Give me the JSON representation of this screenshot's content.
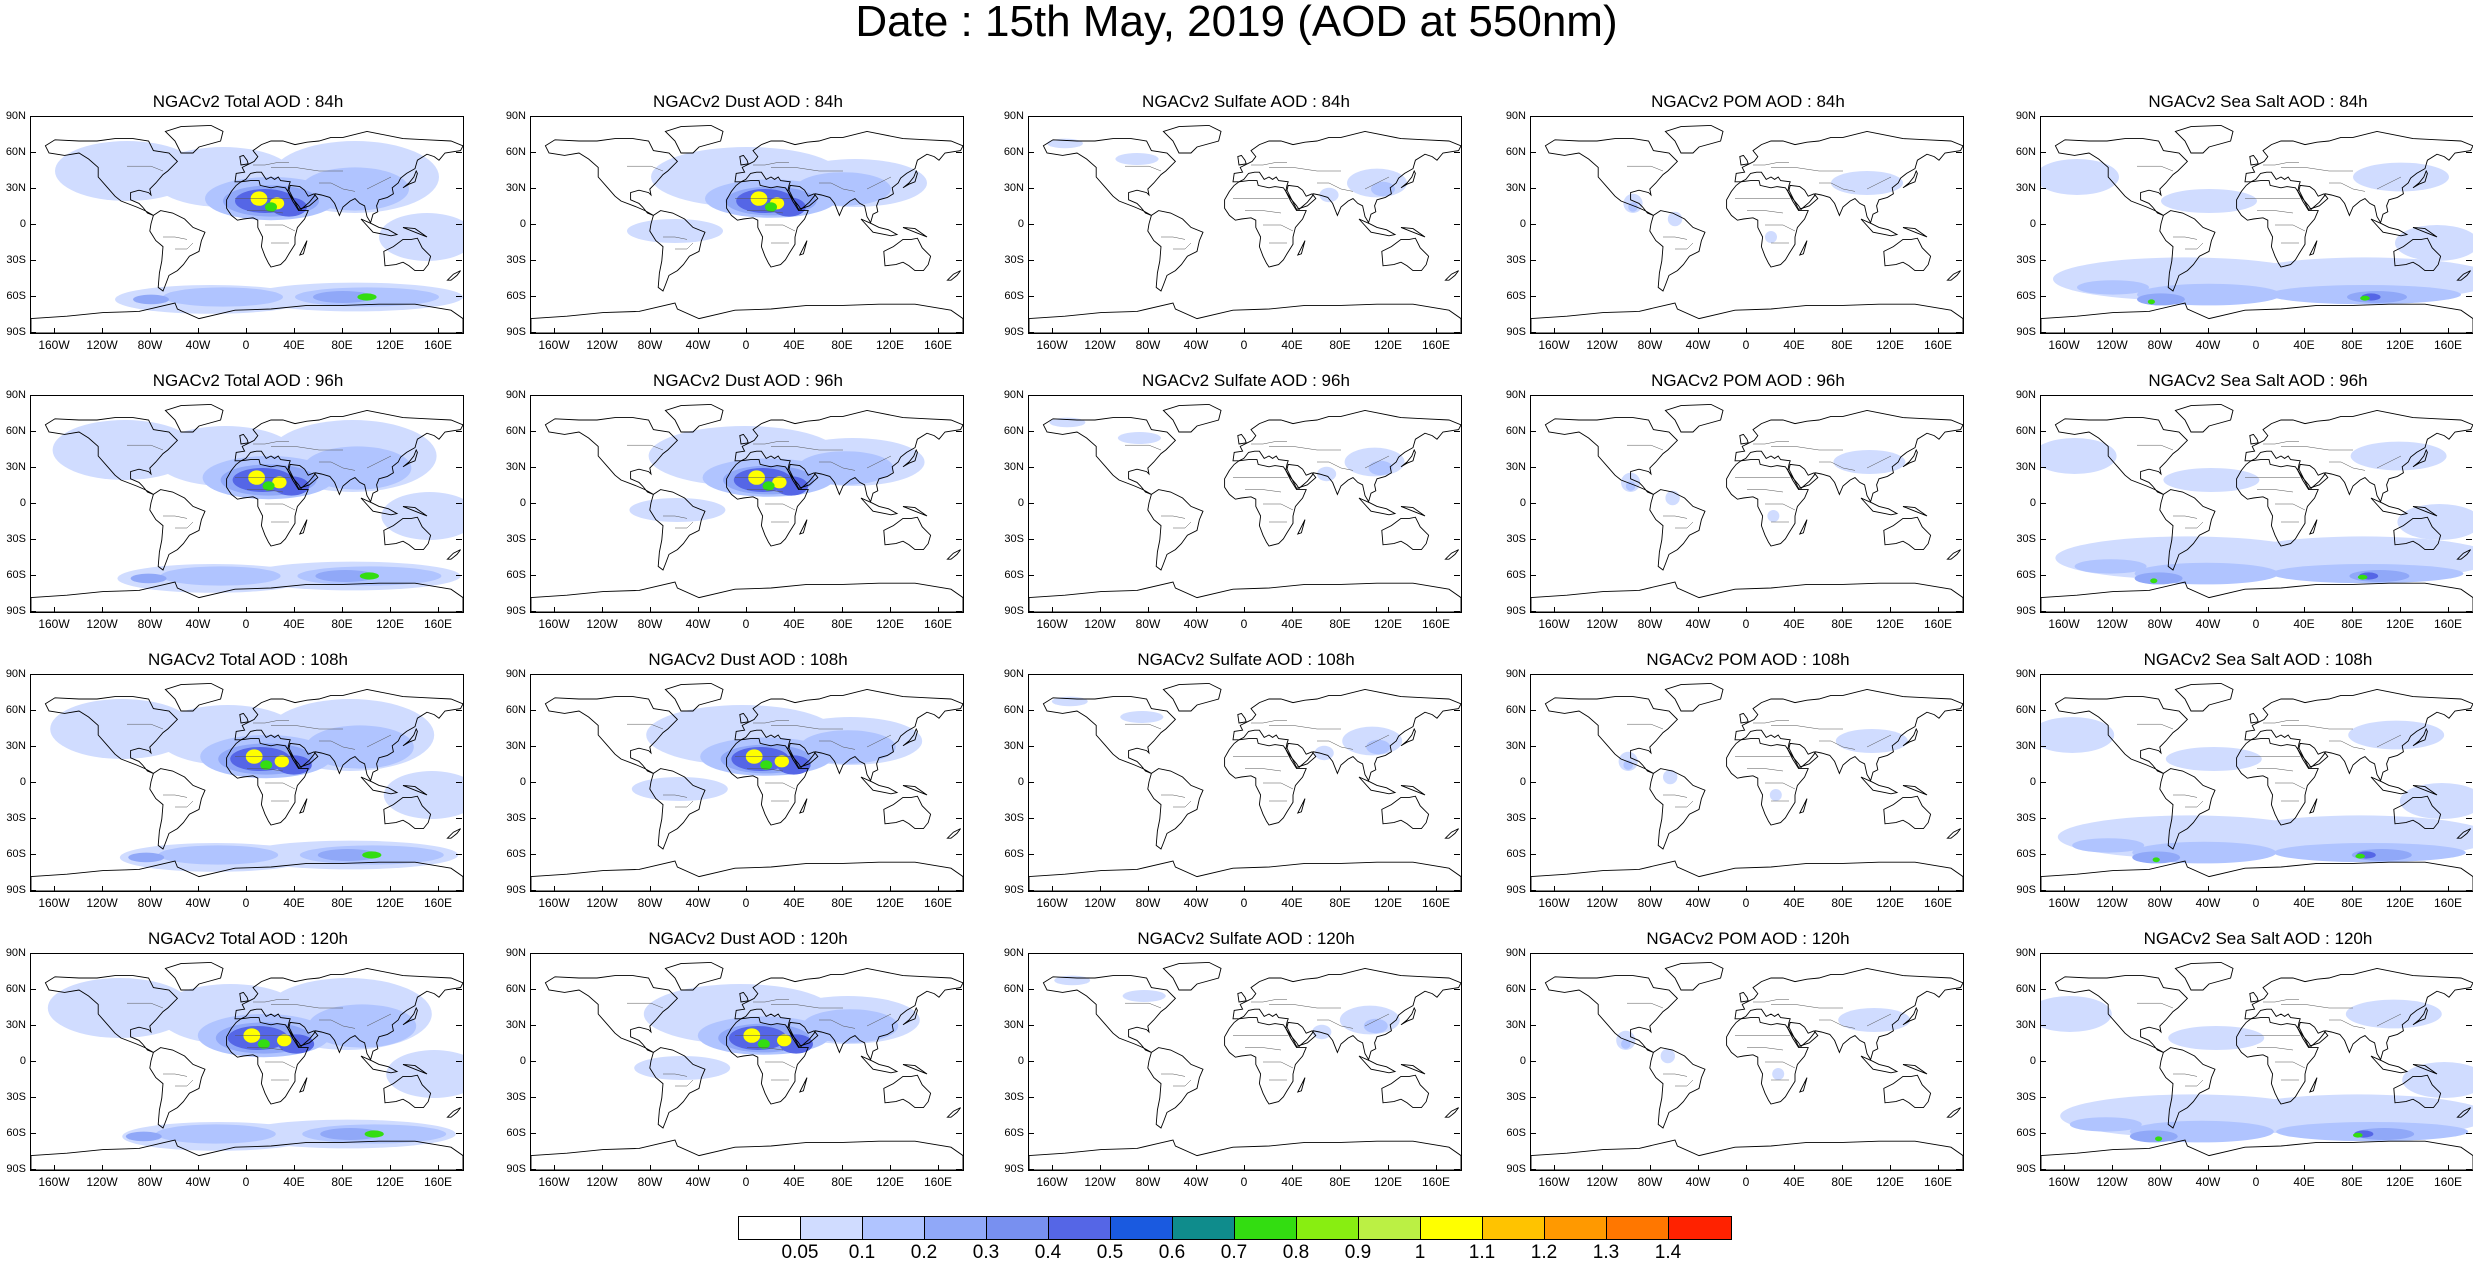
{
  "title": "Date : 15th May, 2019 (AOD at 550nm)",
  "panels": [
    "NGACv2 Total AOD : 84h",
    "NGACv2 Dust AOD : 84h",
    "NGACv2 Sulfate AOD : 84h",
    "NGACv2 POM AOD : 84h",
    "NGACv2 Sea Salt AOD : 84h",
    "NGACv2 Total AOD : 96h",
    "NGACv2 Dust AOD : 96h",
    "NGACv2 Sulfate AOD : 96h",
    "NGACv2 POM AOD : 96h",
    "NGACv2 Sea Salt AOD : 96h",
    "NGACv2 Total AOD : 108h",
    "NGACv2 Dust AOD : 108h",
    "NGACv2 Sulfate AOD : 108h",
    "NGACv2 POM AOD : 108h",
    "NGACv2 Sea Salt AOD : 108h",
    "NGACv2 Total AOD : 120h",
    "NGACv2 Dust AOD : 120h",
    "NGACv2 Sulfate AOD : 120h",
    "NGACv2 POM AOD : 120h",
    "NGACv2 Sea Salt  AOD : 120h"
  ],
  "lat_labels": [
    "90N",
    "60N",
    "30N",
    "0",
    "30S",
    "60S",
    "90S"
  ],
  "lon_labels": [
    "160W",
    "120W",
    "80W",
    "40W",
    "0",
    "40E",
    "80E",
    "120E",
    "160E"
  ],
  "lon_values": [
    -160,
    -120,
    -80,
    -40,
    0,
    40,
    80,
    120,
    160
  ],
  "lat_values": [
    90,
    60,
    30,
    0,
    -30,
    -60,
    -90
  ],
  "colorbar": {
    "labels": [
      "0.05",
      "0.1",
      "0.2",
      "0.3",
      "0.4",
      "0.5",
      "0.6",
      "0.7",
      "0.8",
      "0.9",
      "1",
      "1.1",
      "1.2",
      "1.3",
      "1.4"
    ],
    "colors": [
      "#ffffff",
      "#d0dcff",
      "#b0c4ff",
      "#90a8f8",
      "#7890f0",
      "#5566e6",
      "#1a5ae0",
      "#0f8c8c",
      "#33dd11",
      "#88ee11",
      "#bbf044",
      "#ffff00",
      "#ffc300",
      "#ff9900",
      "#ff7700",
      "#ff2200"
    ]
  },
  "field_colors": {
    "low": "#d0dcff",
    "mid": "#b0c4ff",
    "high": "#90a8f8",
    "dust_core": "#5566e6",
    "peak": "#ffff00",
    "peak2": "#33dd11"
  },
  "map_style": {
    "ocean": "#ffffff",
    "coast": "#000000",
    "borders": "#555555"
  }
}
